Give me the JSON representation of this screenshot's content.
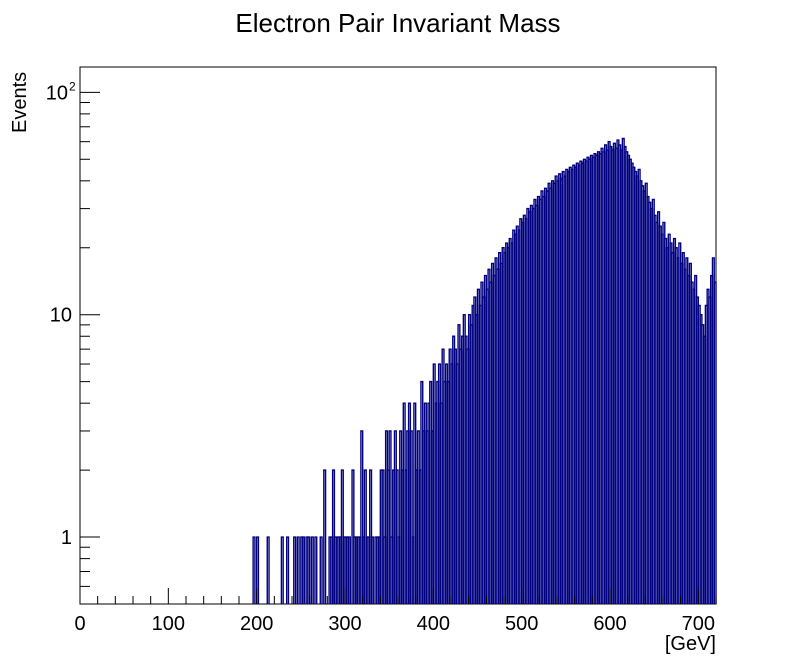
{
  "chart_data": {
    "type": "histogram",
    "title": "Electron Pair Invariant Mass",
    "xlabel": "[GeV]",
    "ylabel": "Events",
    "xlim": [
      0,
      720
    ],
    "ylim": [
      0.5,
      130
    ],
    "yscale": "log",
    "bin_width": 2,
    "x_ticks": [
      "0",
      "100",
      "200",
      "300",
      "400",
      "500",
      "600",
      "700"
    ],
    "x_tick_values": [
      0,
      100,
      200,
      300,
      400,
      500,
      600,
      700
    ],
    "y_ticks": [
      {
        "value": 1,
        "label": "1",
        "sup": ""
      },
      {
        "value": 10,
        "label": "10",
        "sup": ""
      },
      {
        "value": 100,
        "label": "10",
        "sup": "2"
      }
    ],
    "grid": false,
    "line_color": "#000080",
    "bins": [
      [
        196,
        1
      ],
      [
        200,
        1
      ],
      [
        212,
        1
      ],
      [
        228,
        1
      ],
      [
        234,
        1
      ],
      [
        242,
        1
      ],
      [
        246,
        1
      ],
      [
        250,
        1
      ],
      [
        252,
        1
      ],
      [
        256,
        1
      ],
      [
        258,
        1
      ],
      [
        262,
        1
      ],
      [
        266,
        1
      ],
      [
        272,
        1
      ],
      [
        276,
        2
      ],
      [
        282,
        1
      ],
      [
        284,
        1
      ],
      [
        286,
        2
      ],
      [
        288,
        1
      ],
      [
        290,
        1
      ],
      [
        292,
        1
      ],
      [
        294,
        1
      ],
      [
        296,
        2
      ],
      [
        298,
        1
      ],
      [
        300,
        1
      ],
      [
        302,
        1
      ],
      [
        304,
        1
      ],
      [
        308,
        2
      ],
      [
        310,
        1
      ],
      [
        312,
        1
      ],
      [
        314,
        1
      ],
      [
        316,
        1
      ],
      [
        318,
        3
      ],
      [
        320,
        1
      ],
      [
        322,
        2
      ],
      [
        324,
        1
      ],
      [
        326,
        1
      ],
      [
        328,
        2
      ],
      [
        330,
        1
      ],
      [
        334,
        1
      ],
      [
        336,
        1
      ],
      [
        338,
        1
      ],
      [
        340,
        2
      ],
      [
        342,
        2
      ],
      [
        344,
        1
      ],
      [
        346,
        3
      ],
      [
        348,
        2
      ],
      [
        350,
        3
      ],
      [
        352,
        1
      ],
      [
        354,
        2
      ],
      [
        356,
        3
      ],
      [
        358,
        2
      ],
      [
        360,
        1
      ],
      [
        362,
        3
      ],
      [
        364,
        2
      ],
      [
        366,
        4
      ],
      [
        368,
        2
      ],
      [
        370,
        3
      ],
      [
        372,
        4
      ],
      [
        374,
        3
      ],
      [
        376,
        1
      ],
      [
        378,
        4
      ],
      [
        380,
        2
      ],
      [
        382,
        3
      ],
      [
        384,
        2
      ],
      [
        386,
        5
      ],
      [
        388,
        3
      ],
      [
        390,
        4
      ],
      [
        392,
        3
      ],
      [
        394,
        4
      ],
      [
        396,
        5
      ],
      [
        398,
        3
      ],
      [
        400,
        6
      ],
      [
        402,
        4
      ],
      [
        404,
        5
      ],
      [
        406,
        6
      ],
      [
        408,
        4
      ],
      [
        410,
        7
      ],
      [
        412,
        5
      ],
      [
        414,
        6
      ],
      [
        416,
        5
      ],
      [
        418,
        7
      ],
      [
        420,
        6
      ],
      [
        422,
        8
      ],
      [
        424,
        7
      ],
      [
        426,
        6
      ],
      [
        428,
        9
      ],
      [
        430,
        7
      ],
      [
        432,
        8
      ],
      [
        434,
        10
      ],
      [
        436,
        8
      ],
      [
        438,
        7
      ],
      [
        440,
        10
      ],
      [
        442,
        9
      ],
      [
        444,
        11
      ],
      [
        446,
        12
      ],
      [
        448,
        10
      ],
      [
        450,
        13
      ],
      [
        452,
        11
      ],
      [
        454,
        14
      ],
      [
        456,
        12
      ],
      [
        458,
        15
      ],
      [
        460,
        13
      ],
      [
        462,
        16
      ],
      [
        464,
        14
      ],
      [
        466,
        17
      ],
      [
        468,
        15
      ],
      [
        470,
        18
      ],
      [
        472,
        16
      ],
      [
        474,
        19
      ],
      [
        476,
        17
      ],
      [
        478,
        20
      ],
      [
        480,
        19
      ],
      [
        482,
        21
      ],
      [
        484,
        20
      ],
      [
        486,
        22
      ],
      [
        488,
        21
      ],
      [
        490,
        24
      ],
      [
        492,
        23
      ],
      [
        494,
        25
      ],
      [
        496,
        24
      ],
      [
        498,
        27
      ],
      [
        500,
        26
      ],
      [
        502,
        28
      ],
      [
        504,
        27
      ],
      [
        506,
        30
      ],
      [
        508,
        29
      ],
      [
        510,
        31
      ],
      [
        512,
        30
      ],
      [
        514,
        33
      ],
      [
        516,
        31
      ],
      [
        518,
        34
      ],
      [
        520,
        33
      ],
      [
        522,
        36
      ],
      [
        524,
        34
      ],
      [
        526,
        37
      ],
      [
        528,
        36
      ],
      [
        530,
        39
      ],
      [
        532,
        37
      ],
      [
        534,
        40
      ],
      [
        536,
        39
      ],
      [
        538,
        42
      ],
      [
        540,
        40
      ],
      [
        542,
        43
      ],
      [
        544,
        41
      ],
      [
        546,
        44
      ],
      [
        548,
        42
      ],
      [
        550,
        45
      ],
      [
        552,
        44
      ],
      [
        554,
        46
      ],
      [
        556,
        45
      ],
      [
        558,
        47
      ],
      [
        560,
        46
      ],
      [
        562,
        48
      ],
      [
        564,
        47
      ],
      [
        566,
        49
      ],
      [
        568,
        48
      ],
      [
        570,
        50
      ],
      [
        572,
        49
      ],
      [
        574,
        51
      ],
      [
        576,
        50
      ],
      [
        578,
        52
      ],
      [
        580,
        51
      ],
      [
        582,
        53
      ],
      [
        584,
        52
      ],
      [
        586,
        54
      ],
      [
        588,
        53
      ],
      [
        590,
        56
      ],
      [
        592,
        54
      ],
      [
        594,
        58
      ],
      [
        596,
        55
      ],
      [
        598,
        60
      ],
      [
        600,
        57
      ],
      [
        602,
        55
      ],
      [
        604,
        59
      ],
      [
        606,
        56
      ],
      [
        608,
        61
      ],
      [
        610,
        58
      ],
      [
        612,
        55
      ],
      [
        614,
        62
      ],
      [
        616,
        57
      ],
      [
        618,
        54
      ],
      [
        620,
        52
      ],
      [
        622,
        50
      ],
      [
        624,
        48
      ],
      [
        626,
        46
      ],
      [
        628,
        44
      ],
      [
        630,
        42
      ],
      [
        632,
        45
      ],
      [
        634,
        40
      ],
      [
        636,
        38
      ],
      [
        638,
        36
      ],
      [
        640,
        39
      ],
      [
        642,
        34
      ],
      [
        644,
        32
      ],
      [
        646,
        30
      ],
      [
        648,
        33
      ],
      [
        650,
        28
      ],
      [
        652,
        26
      ],
      [
        654,
        29
      ],
      [
        656,
        25
      ],
      [
        658,
        23
      ],
      [
        660,
        26
      ],
      [
        662,
        22
      ],
      [
        664,
        20
      ],
      [
        666,
        23
      ],
      [
        668,
        21
      ],
      [
        670,
        19
      ],
      [
        672,
        22
      ],
      [
        674,
        20
      ],
      [
        676,
        18
      ],
      [
        678,
        21
      ],
      [
        680,
        17
      ],
      [
        682,
        19
      ],
      [
        684,
        16
      ],
      [
        686,
        18
      ],
      [
        688,
        15
      ],
      [
        690,
        17
      ],
      [
        692,
        14
      ],
      [
        694,
        13
      ],
      [
        696,
        15
      ],
      [
        698,
        12
      ],
      [
        700,
        11
      ],
      [
        702,
        10
      ],
      [
        704,
        9
      ],
      [
        706,
        8
      ],
      [
        708,
        11
      ],
      [
        710,
        13
      ],
      [
        712,
        12
      ],
      [
        714,
        15
      ],
      [
        716,
        18
      ],
      [
        718,
        14
      ]
    ]
  }
}
